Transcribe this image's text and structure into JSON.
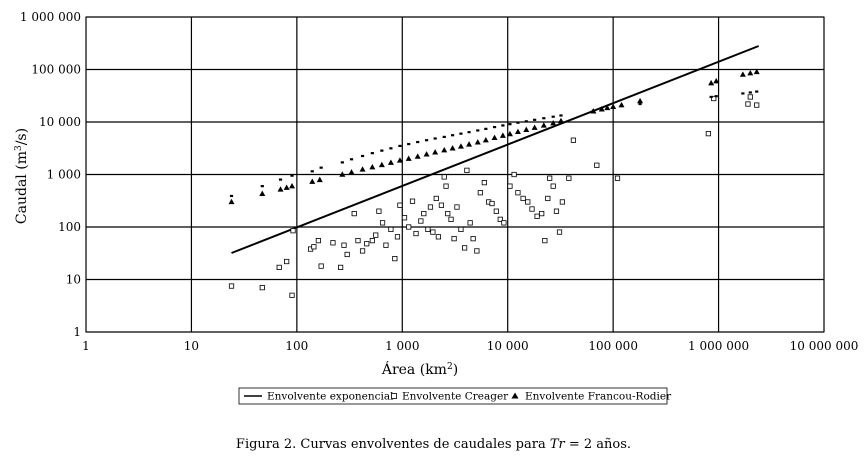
{
  "caption": {
    "prefix": "Figura 2. Curvas envolventes de caudales para ",
    "symbol": "Tr",
    "suffix": " = 2 años."
  },
  "chart_data": {
    "type": "scatter",
    "x_scale": "log",
    "y_scale": "log",
    "xlim": [
      1,
      10000000
    ],
    "ylim": [
      1,
      1000000
    ],
    "grid": true,
    "legend_position": "bottom",
    "xlabel": {
      "text": "Área (km",
      "sup": "2",
      "close": ")"
    },
    "ylabel": {
      "text": "Caudal (m",
      "sup": "3",
      "close": "/s)"
    },
    "x_ticks": [
      {
        "value": 1,
        "label": "1"
      },
      {
        "value": 10,
        "label": "10"
      },
      {
        "value": 100,
        "label": "100"
      },
      {
        "value": 1000,
        "label": "1 000"
      },
      {
        "value": 10000,
        "label": "10 000"
      },
      {
        "value": 100000,
        "label": "100 000"
      },
      {
        "value": 1000000,
        "label": "1 000 000"
      },
      {
        "value": 10000000,
        "label": "10 000 000"
      }
    ],
    "y_ticks": [
      {
        "value": 1,
        "label": "1"
      },
      {
        "value": 10,
        "label": "10"
      },
      {
        "value": 100,
        "label": "100"
      },
      {
        "value": 1000,
        "label": "1 000"
      },
      {
        "value": 10000,
        "label": "10 000"
      },
      {
        "value": 100000,
        "label": "100 000"
      },
      {
        "value": 1000000,
        "label": "1 000 000"
      }
    ],
    "series": [
      {
        "name": "Envolvente exponencial",
        "kind": "line",
        "color": "#000000",
        "points": [
          [
            24,
            32
          ],
          [
            2400000,
            280000
          ]
        ]
      },
      {
        "name": "Envolvente Creager",
        "kind": "square",
        "color": "#000000",
        "points": [
          [
            24,
            7.5
          ],
          [
            47,
            7
          ],
          [
            68,
            17
          ],
          [
            80,
            22
          ],
          [
            90,
            5
          ],
          [
            92,
            85
          ],
          [
            135,
            38
          ],
          [
            145,
            42
          ],
          [
            160,
            55
          ],
          [
            170,
            18
          ],
          [
            220,
            50
          ],
          [
            260,
            17
          ],
          [
            280,
            45
          ],
          [
            300,
            30
          ],
          [
            350,
            180
          ],
          [
            380,
            55
          ],
          [
            420,
            35
          ],
          [
            460,
            48
          ],
          [
            520,
            55
          ],
          [
            560,
            70
          ],
          [
            600,
            200
          ],
          [
            650,
            120
          ],
          [
            700,
            45
          ],
          [
            780,
            90
          ],
          [
            850,
            25
          ],
          [
            900,
            65
          ],
          [
            950,
            260
          ],
          [
            1050,
            150
          ],
          [
            1150,
            100
          ],
          [
            1250,
            310
          ],
          [
            1350,
            75
          ],
          [
            1500,
            130
          ],
          [
            1600,
            180
          ],
          [
            1750,
            90
          ],
          [
            1850,
            240
          ],
          [
            1950,
            80
          ],
          [
            2100,
            350
          ],
          [
            2200,
            65
          ],
          [
            2350,
            260
          ],
          [
            2500,
            900
          ],
          [
            2600,
            600
          ],
          [
            2700,
            180
          ],
          [
            2900,
            140
          ],
          [
            3100,
            60
          ],
          [
            3300,
            240
          ],
          [
            3600,
            90
          ],
          [
            3900,
            40
          ],
          [
            4100,
            1200
          ],
          [
            4400,
            120
          ],
          [
            4700,
            60
          ],
          [
            5100,
            35
          ],
          [
            5500,
            450
          ],
          [
            6000,
            700
          ],
          [
            6600,
            300
          ],
          [
            7100,
            280
          ],
          [
            7800,
            200
          ],
          [
            8500,
            140
          ],
          [
            9200,
            120
          ],
          [
            10500,
            600
          ],
          [
            11500,
            1000
          ],
          [
            12500,
            450
          ],
          [
            14000,
            350
          ],
          [
            15500,
            300
          ],
          [
            17000,
            220
          ],
          [
            19000,
            160
          ],
          [
            21000,
            180
          ],
          [
            22500,
            55
          ],
          [
            24000,
            350
          ],
          [
            25000,
            850
          ],
          [
            27000,
            600
          ],
          [
            29000,
            200
          ],
          [
            31000,
            80
          ],
          [
            33000,
            300
          ],
          [
            38000,
            850
          ],
          [
            42000,
            4500
          ],
          [
            70000,
            1500
          ],
          [
            110000,
            850
          ],
          [
            800000,
            6000
          ],
          [
            900000,
            28000
          ],
          [
            1900000,
            22000
          ],
          [
            2000000,
            30000
          ],
          [
            2300000,
            21000
          ]
        ]
      },
      {
        "name": "Envolvente Francou-Rodier",
        "kind": "triangle",
        "color": "#000000",
        "points": [
          [
            24,
            300
          ],
          [
            47,
            430
          ],
          [
            70,
            520
          ],
          [
            80,
            560
          ],
          [
            90,
            600
          ],
          [
            140,
            730
          ],
          [
            165,
            790
          ],
          [
            270,
            1000
          ],
          [
            330,
            1100
          ],
          [
            420,
            1250
          ],
          [
            520,
            1380
          ],
          [
            640,
            1520
          ],
          [
            780,
            1680
          ],
          [
            950,
            1850
          ],
          [
            1150,
            2000
          ],
          [
            1400,
            2200
          ],
          [
            1700,
            2420
          ],
          [
            2050,
            2650
          ],
          [
            2500,
            2900
          ],
          [
            3000,
            3150
          ],
          [
            3600,
            3420
          ],
          [
            4300,
            3750
          ],
          [
            5200,
            4100
          ],
          [
            6200,
            4500
          ],
          [
            7500,
            5000
          ],
          [
            9000,
            5500
          ],
          [
            10500,
            5900
          ],
          [
            12500,
            6500
          ],
          [
            15000,
            7100
          ],
          [
            18000,
            7800
          ],
          [
            22000,
            8600
          ],
          [
            27000,
            9500
          ],
          [
            32000,
            10500
          ],
          [
            65000,
            16000
          ],
          [
            78000,
            17500
          ],
          [
            88000,
            18500
          ],
          [
            100000,
            19500
          ],
          [
            120000,
            21000
          ],
          [
            180000,
            25000
          ],
          [
            850000,
            55000
          ],
          [
            950000,
            60000
          ],
          [
            1700000,
            80000
          ],
          [
            2000000,
            85000
          ],
          [
            2300000,
            90000
          ]
        ]
      },
      {
        "name": "",
        "kind": "dash",
        "color": "#000000",
        "points": [
          [
            24,
            390
          ],
          [
            47,
            600
          ],
          [
            70,
            800
          ],
          [
            90,
            950
          ],
          [
            140,
            1150
          ],
          [
            170,
            1350
          ],
          [
            270,
            1700
          ],
          [
            330,
            1950
          ],
          [
            420,
            2250
          ],
          [
            520,
            2550
          ],
          [
            640,
            2850
          ],
          [
            780,
            3150
          ],
          [
            950,
            3500
          ],
          [
            1150,
            3800
          ],
          [
            1400,
            4150
          ],
          [
            1700,
            4500
          ],
          [
            2050,
            4850
          ],
          [
            2500,
            5200
          ],
          [
            3000,
            5600
          ],
          [
            3600,
            6000
          ],
          [
            4300,
            6400
          ],
          [
            5200,
            6900
          ],
          [
            6200,
            7400
          ],
          [
            7500,
            8000
          ],
          [
            9000,
            8600
          ],
          [
            10500,
            9100
          ],
          [
            12500,
            9700
          ],
          [
            15000,
            10300
          ],
          [
            18000,
            11000
          ],
          [
            22000,
            11800
          ],
          [
            27000,
            12600
          ],
          [
            32000,
            13300
          ],
          [
            65000,
            16500
          ],
          [
            78000,
            17200
          ],
          [
            88000,
            18000
          ],
          [
            100000,
            18500
          ],
          [
            120000,
            20000
          ],
          [
            180000,
            22000
          ],
          [
            850000,
            30000
          ],
          [
            950000,
            31000
          ],
          [
            1700000,
            35000
          ],
          [
            2000000,
            36500
          ],
          [
            2300000,
            38000
          ]
        ]
      }
    ],
    "legend": [
      {
        "name": "Envolvente exponencial",
        "kind": "line"
      },
      {
        "name": "Envolvente Creager",
        "kind": "square"
      },
      {
        "name": "Envolvente Francou-Rodier",
        "kind": "triangle"
      }
    ]
  }
}
